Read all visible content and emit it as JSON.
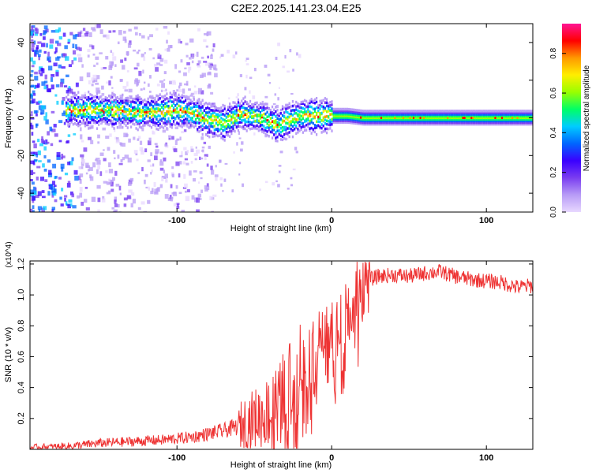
{
  "title": "C2E2.2025.141.23.04.E25",
  "colors": {
    "snr_line": "#ee3333",
    "colormap": [
      "#e8d8ff",
      "#b89cf6",
      "#7a3df0",
      "#3a00ff",
      "#0066ff",
      "#00ccff",
      "#00ff66",
      "#99ff00",
      "#ffee00",
      "#ff9900",
      "#ff0000",
      "#ff1493"
    ]
  },
  "chart_data": [
    {
      "type": "heatmap",
      "xlabel": "Height of straight line (km)",
      "ylabel": "Frequency (Hz)",
      "xlim": [
        -195,
        130
      ],
      "ylim": [
        -50,
        50
      ],
      "x_ticks": [
        -100,
        0,
        100
      ],
      "y_ticks": [
        -40,
        -20,
        0,
        20,
        40
      ],
      "x_tick_labels": [
        "-100",
        "0",
        "100"
      ],
      "y_tick_labels": [
        "-40",
        "-20",
        "0",
        "20",
        "40"
      ],
      "colorbar": {
        "label": "Normalized spectral amplitude",
        "range": [
          0,
          0.95
        ],
        "ticks": [
          0.0,
          0.2,
          0.4,
          0.6,
          0.8
        ],
        "tick_labels": [
          "0.0",
          "0.2",
          "0.4",
          "0.6",
          "0.8"
        ]
      },
      "ridge": {
        "x": [
          -170,
          -150,
          -130,
          -110,
          -100,
          -90,
          -80,
          -70,
          -60,
          -50,
          -40,
          -35,
          -30,
          -20,
          -10,
          0,
          10,
          20,
          40,
          60,
          80,
          100,
          130
        ],
        "freq": [
          4,
          4,
          3,
          3,
          4,
          2,
          -1,
          -3,
          2,
          1,
          -2,
          -4,
          -2,
          1,
          1,
          1,
          1,
          0,
          0,
          0,
          0,
          0,
          0
        ]
      }
    },
    {
      "type": "line",
      "xlabel": "Height of straight line (km)",
      "ylabel": "SNR (10 * v/v)",
      "y_multiplier": "(x10^4)",
      "xlim": [
        -195,
        130
      ],
      "ylim": [
        0,
        1.22
      ],
      "x_ticks": [
        -100,
        0,
        100
      ],
      "y_ticks": [
        0.2,
        0.4,
        0.6,
        0.8,
        1.0,
        1.2
      ],
      "x_tick_labels": [
        "-100",
        "0",
        "100"
      ],
      "y_tick_labels": [
        "0.2",
        "0.4",
        "0.6",
        "0.8",
        "1.0",
        "1.2"
      ],
      "series": [
        {
          "x": [
            -195,
            -170,
            -150,
            -130,
            -110,
            -90,
            -80,
            -70,
            -60,
            -55,
            -50,
            -45,
            -40,
            -35,
            -30,
            -25,
            -20,
            -15,
            -10,
            -5,
            0,
            5,
            10,
            15,
            20,
            25,
            30,
            40,
            50,
            60,
            70,
            80,
            90,
            100,
            110,
            120,
            130
          ],
          "values": [
            0.01,
            0.02,
            0.04,
            0.05,
            0.06,
            0.08,
            0.1,
            0.12,
            0.15,
            0.18,
            0.2,
            0.22,
            0.25,
            0.3,
            0.38,
            0.45,
            0.55,
            0.62,
            0.68,
            0.72,
            0.75,
            0.82,
            0.92,
            1.02,
            1.08,
            1.1,
            1.12,
            1.13,
            1.12,
            1.14,
            1.15,
            1.12,
            1.1,
            1.09,
            1.08,
            1.05,
            1.06
          ]
        }
      ]
    }
  ]
}
